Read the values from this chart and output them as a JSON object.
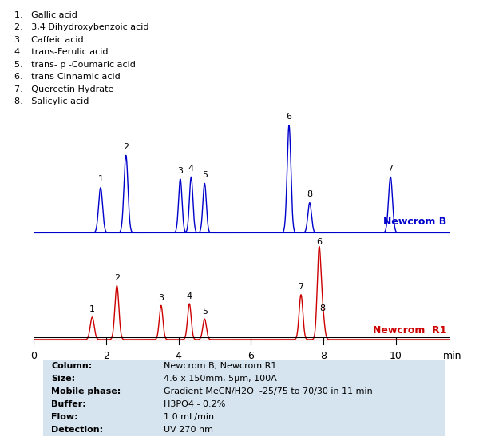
{
  "legend_labels": [
    "1.   Gallic acid",
    "2.   3,4 Dihydroxybenzoic acid",
    "3.   Caffeic acid",
    "4.   trans-Ferulic acid",
    "5.   trans- p -Coumaric acid",
    "6.   trans-Cinnamic acid",
    "7.   Quercetin Hydrate",
    "8.   Salicylic acid"
  ],
  "blue_color": "#0000CC",
  "red_color": "#CC0000",
  "newcrom_b_label": "Newcrom B",
  "newcrom_r1_label": "Newcrom  R1",
  "xmin": 0,
  "xmax": 11.5,
  "xticks": [
    0,
    2,
    4,
    6,
    8,
    10
  ],
  "xlabel": "min",
  "blue_peaks": {
    "positions": [
      1.85,
      2.55,
      4.05,
      4.35,
      4.72,
      7.05,
      9.85,
      7.62
    ],
    "heights": [
      0.42,
      0.72,
      0.5,
      0.52,
      0.46,
      1.0,
      0.52,
      0.28
    ],
    "widths": [
      0.055,
      0.055,
      0.048,
      0.048,
      0.048,
      0.052,
      0.055,
      0.05
    ],
    "labels": [
      "1",
      "2",
      "3",
      "4",
      "5",
      "6",
      "7",
      "8"
    ],
    "label_x_offsets": [
      0,
      0,
      0,
      0,
      0,
      0,
      0,
      0
    ]
  },
  "red_peaks": {
    "positions": [
      1.62,
      2.3,
      3.52,
      4.3,
      4.72,
      7.88,
      7.38,
      7.98
    ],
    "heights": [
      0.25,
      0.6,
      0.38,
      0.4,
      0.23,
      1.0,
      0.5,
      0.26
    ],
    "widths": [
      0.055,
      0.055,
      0.05,
      0.05,
      0.05,
      0.052,
      0.052,
      0.05
    ],
    "labels": [
      "1",
      "2",
      "3",
      "4",
      "5",
      "6",
      "7",
      "8"
    ],
    "label_x_offsets": [
      0,
      0,
      0,
      0,
      0,
      0,
      0,
      0
    ]
  },
  "info_box": {
    "bg_color": "#d6e4f0",
    "labels_bold": [
      "Column:",
      "Size:",
      "Mobile phase:",
      "Buffer:",
      "Flow:",
      "Detection:"
    ],
    "labels_normal": [
      "Newcrom B, Newcrom R1",
      "4.6 x 150mm, 5μm, 100A",
      "Gradient MeCN/H2O  -25/75 to 70/30 in 11 min",
      "H3PO4 - 0.2%",
      "1.0 mL/min",
      "UV 270 nm"
    ]
  }
}
